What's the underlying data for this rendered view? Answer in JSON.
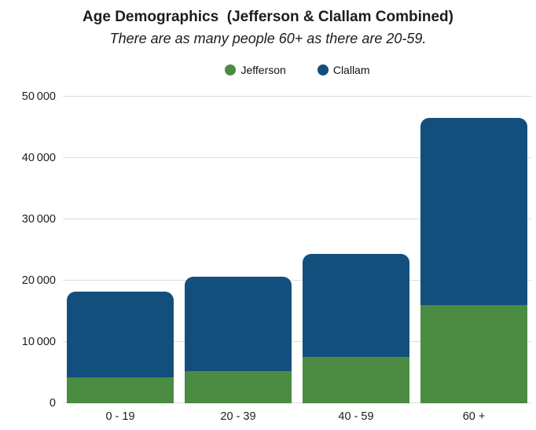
{
  "header": {
    "title": "Age Demographics  (Jefferson & Clallam Combined)",
    "subtitle": "There are as many people 60+ as there are 20-59."
  },
  "legend": {
    "items": [
      {
        "label": "Jefferson",
        "color": "#4b8b42"
      },
      {
        "label": "Clallam",
        "color": "#134f7c"
      }
    ]
  },
  "chart_data": {
    "type": "bar",
    "stacked": true,
    "title": "Age Demographics (Jefferson & Clallam Combined)",
    "subtitle": "There are as many people 60+ as there are 20-59.",
    "categories": [
      "0 - 19",
      "20 - 39",
      "40 - 59",
      "60 +"
    ],
    "series": [
      {
        "name": "Jefferson",
        "color": "#4b8b42",
        "values": [
          4300,
          5200,
          7600,
          16000
        ]
      },
      {
        "name": "Clallam",
        "color": "#134f7c",
        "values": [
          13900,
          15500,
          16700,
          30600
        ]
      }
    ],
    "totals": [
      18200,
      20700,
      24300,
      46600
    ],
    "xlabel": "",
    "ylabel": "",
    "ylim": [
      0,
      50000
    ],
    "yticks": [
      0,
      10000,
      20000,
      30000,
      40000,
      50000
    ],
    "ytick_labels": [
      "0",
      "10 000",
      "20 000",
      "30 000",
      "40 000",
      "50 000"
    ],
    "grid": true,
    "legend_position": "top-center"
  },
  "colors": {
    "jefferson_green": "#4b8b42",
    "clallam_blue": "#134f7c",
    "gridline": "#dcdcdc",
    "text": "#1c1c1e",
    "background": "#ffffff"
  }
}
